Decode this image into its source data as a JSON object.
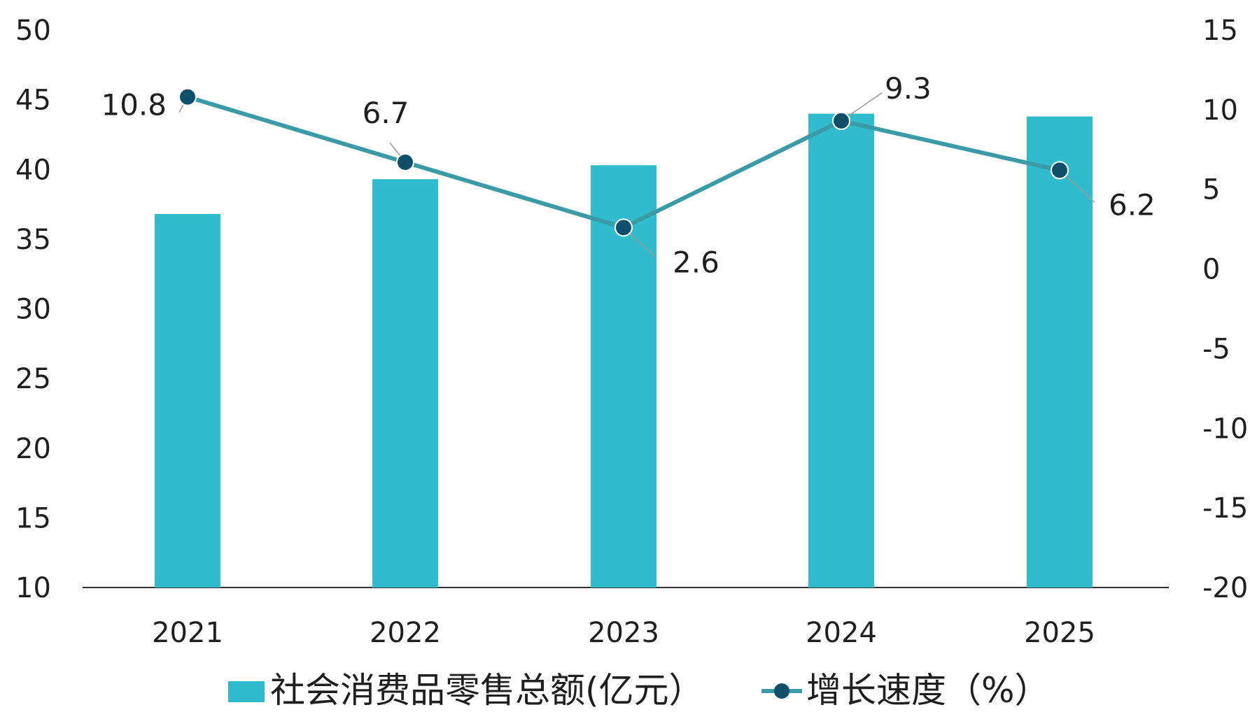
{
  "chart_data": {
    "type": "bar",
    "categories": [
      "2021",
      "2022",
      "2023",
      "2024",
      "2025"
    ],
    "series": [
      {
        "name": "社会消费品零售总额(亿元）",
        "type": "bar",
        "axis": "left",
        "values": [
          36.8,
          39.3,
          40.3,
          44.0,
          43.8
        ]
      },
      {
        "name": "增长速度（%）",
        "type": "line",
        "axis": "right",
        "values": [
          10.8,
          6.7,
          2.6,
          9.3,
          6.2
        ],
        "data_labels": [
          "10.8",
          "6.7",
          "2.6",
          "9.3",
          "6.2"
        ]
      }
    ],
    "left_axis": {
      "ticks": [
        "10",
        "15",
        "20",
        "25",
        "30",
        "35",
        "40",
        "45",
        "50"
      ],
      "ylim": [
        10,
        50
      ]
    },
    "right_axis": {
      "ticks": [
        "-20",
        "-15",
        "-10",
        "-5",
        "0",
        "5",
        "10",
        "15"
      ],
      "ylim": [
        -20,
        15
      ]
    },
    "legend_position": "bottom",
    "grid": false,
    "colors": {
      "bar": "#30bccc",
      "line": "#3a9ba6",
      "marker": "#0f4f6b",
      "axis": "#333333"
    }
  }
}
